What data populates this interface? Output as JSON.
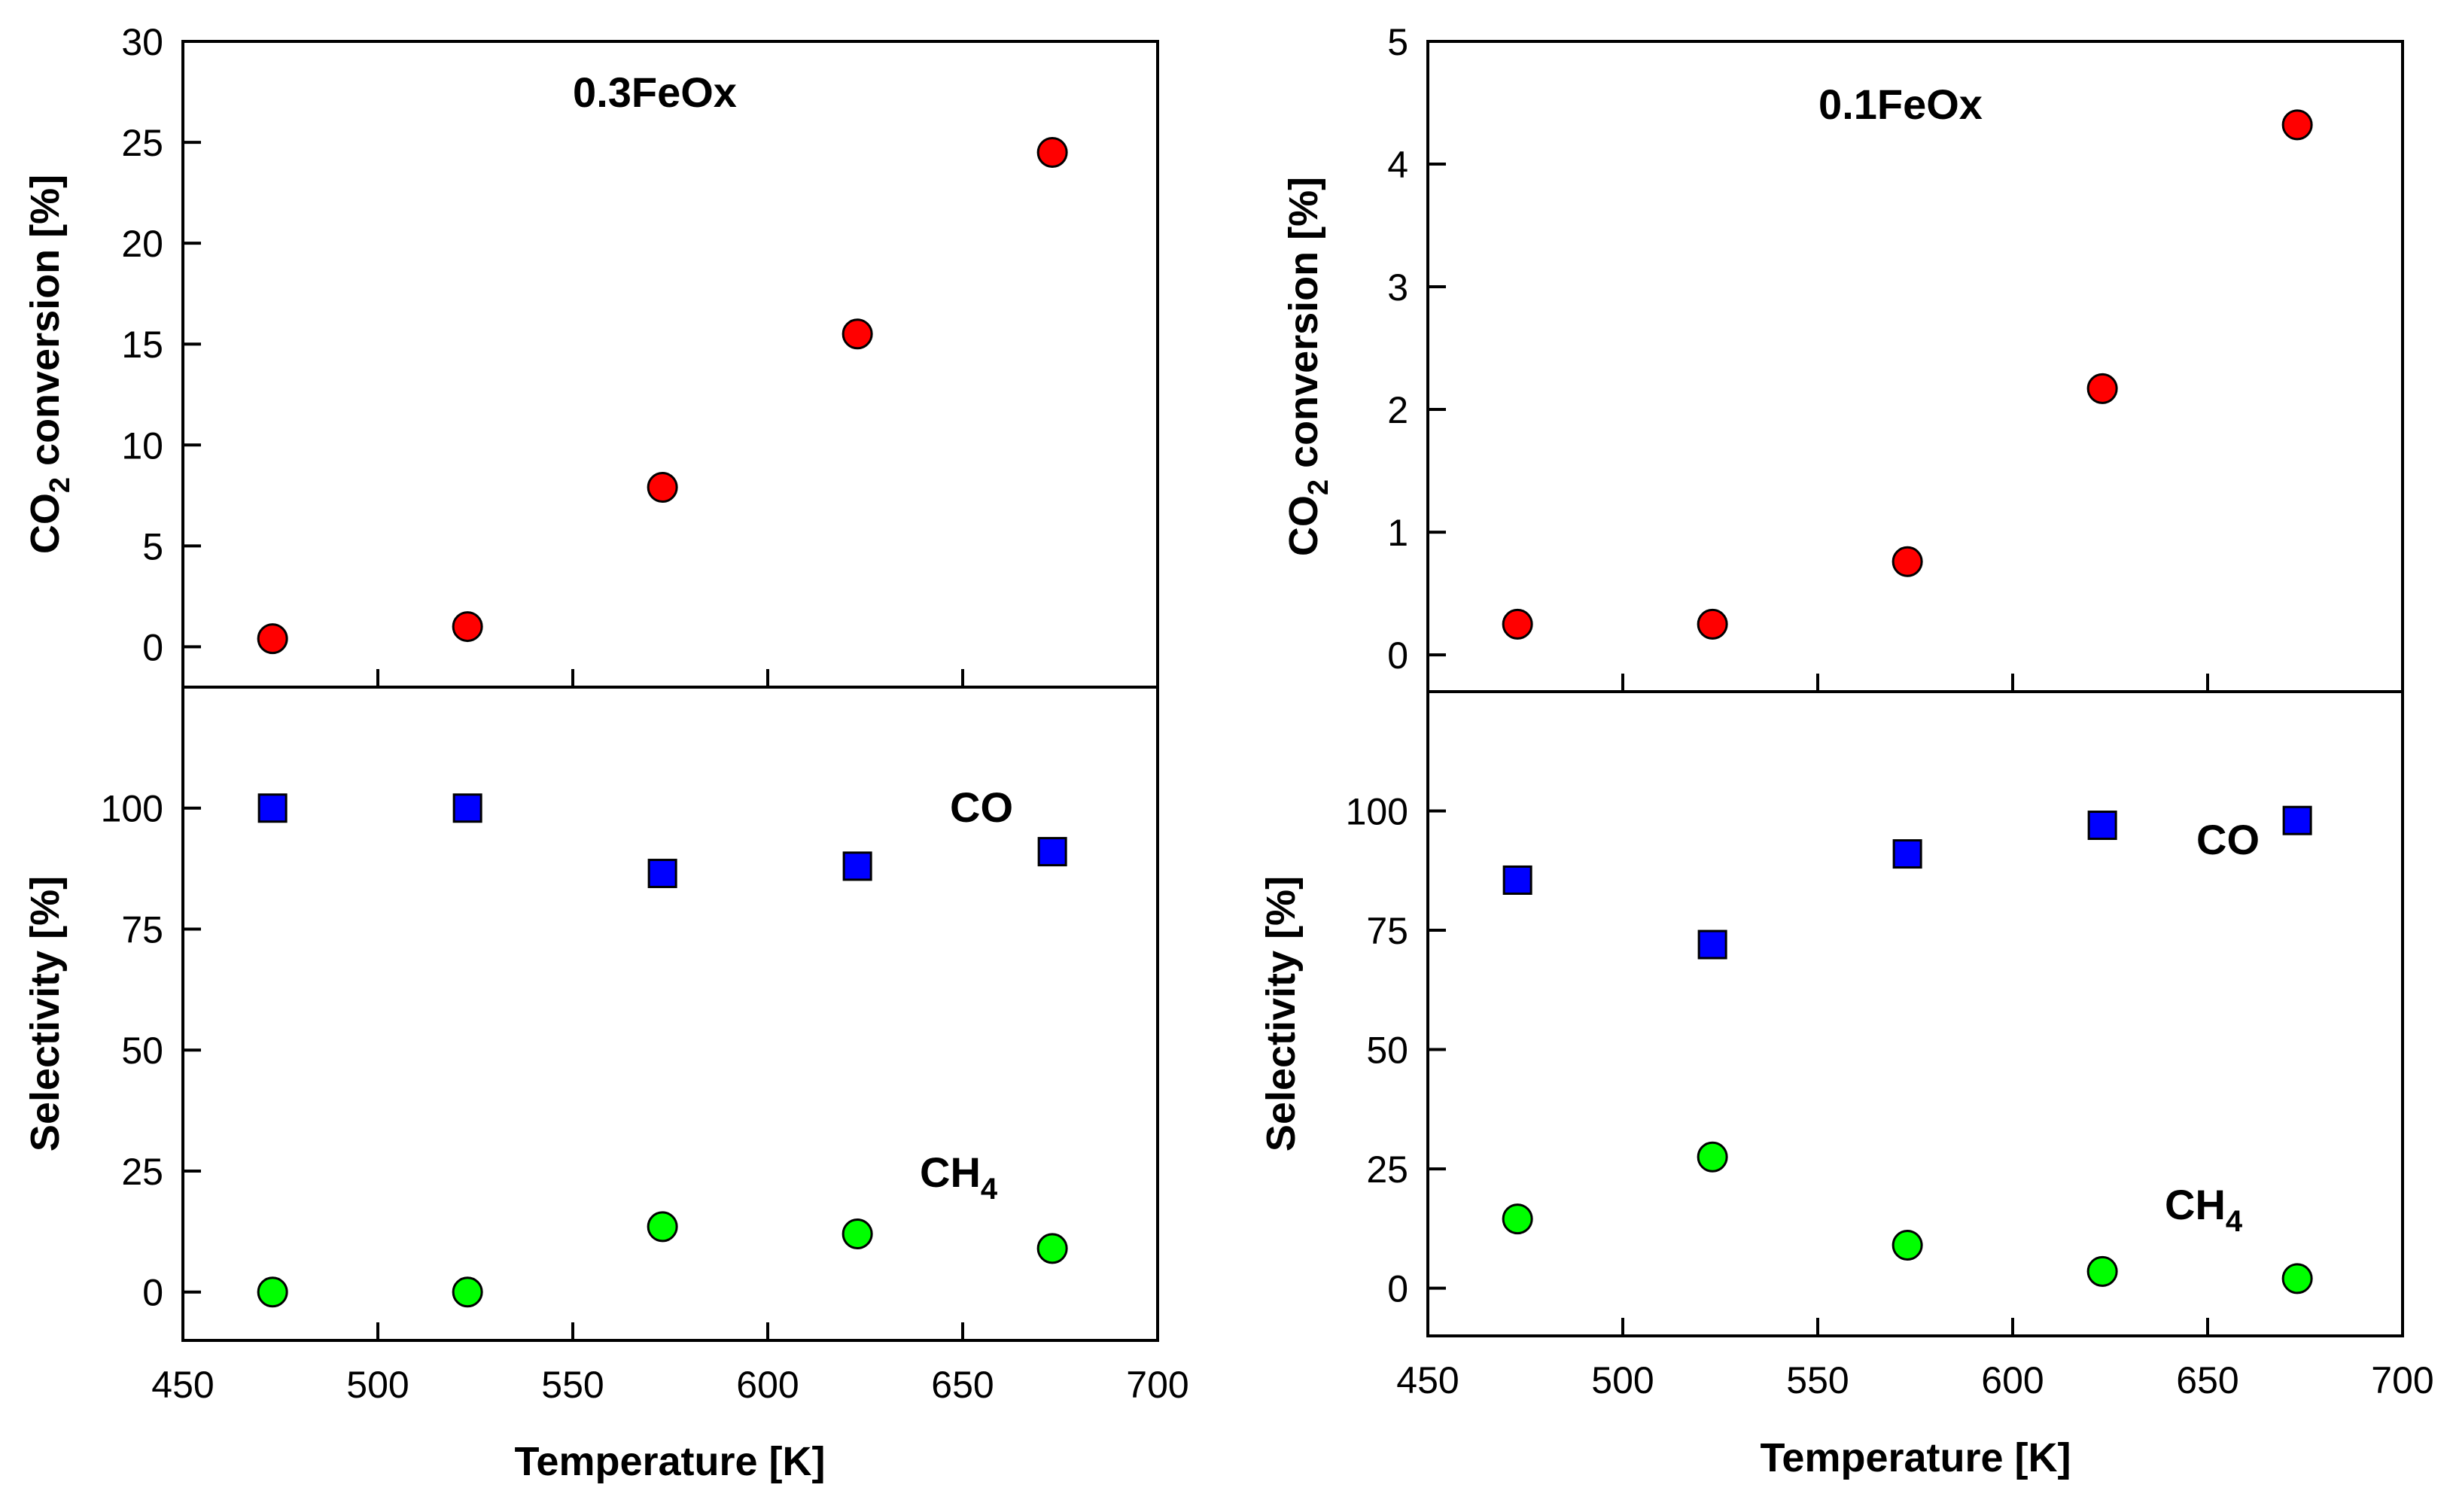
{
  "chart_data": [
    {
      "id": "left",
      "type": "scatter",
      "xlabel": "Temperature [K]",
      "xlim": [
        450,
        700
      ],
      "xticks": [
        450,
        500,
        550,
        600,
        650,
        700
      ],
      "top": {
        "annotation": "0.3FeOx",
        "ylabel_main": "CO",
        "ylabel_sub": "2",
        "ylabel_rest": " conversion [%]",
        "ylim": [
          -2,
          30
        ],
        "yticks": [
          0,
          5,
          10,
          15,
          20,
          25,
          30
        ],
        "series": [
          {
            "name": "CO2 conversion",
            "marker": "circle",
            "color": "#ff0000",
            "x": [
              473,
              523,
              573,
              623,
              673
            ],
            "y": [
              0.4,
              1.0,
              7.9,
              15.5,
              24.5
            ]
          }
        ]
      },
      "bottom": {
        "ylabel": "Selectivity [%]",
        "ylim": [
          -10,
          125
        ],
        "yticks": [
          0,
          25,
          50,
          75,
          100
        ],
        "series": [
          {
            "name": "CO",
            "marker": "square",
            "color": "#0000ff",
            "x": [
              473,
              523,
              573,
              623,
              673
            ],
            "y": [
              100,
              100,
              86.5,
              88,
              91
            ]
          },
          {
            "name": "CH4",
            "marker": "circle",
            "color": "#00ff00",
            "x": [
              473,
              523,
              573,
              623,
              673
            ],
            "y": [
              0,
              0,
              13.5,
              12,
              9
            ]
          }
        ],
        "labels": [
          {
            "series": "CO",
            "main": "CO",
            "sub": ""
          },
          {
            "series": "CH4",
            "main": "CH",
            "sub": "4"
          }
        ]
      }
    },
    {
      "id": "right",
      "type": "scatter",
      "xlabel": "Temperature [K]",
      "xlim": [
        450,
        700
      ],
      "xticks": [
        450,
        500,
        550,
        600,
        650,
        700
      ],
      "top": {
        "annotation": "0.1FeOx",
        "ylabel_main": "CO",
        "ylabel_sub": "2",
        "ylabel_rest": " conversion [%]",
        "ylim": [
          -0.3,
          5
        ],
        "yticks": [
          0,
          1,
          2,
          3,
          4,
          5
        ],
        "series": [
          {
            "name": "CO2 conversion",
            "marker": "circle",
            "color": "#ff0000",
            "x": [
              473,
              523,
              573,
              623,
              673
            ],
            "y": [
              0.25,
              0.25,
              0.76,
              2.17,
              4.32
            ]
          }
        ]
      },
      "bottom": {
        "ylabel": "Selectivity [%]",
        "ylim": [
          -10,
          125
        ],
        "yticks": [
          0,
          25,
          50,
          75,
          100
        ],
        "series": [
          {
            "name": "CO",
            "marker": "square",
            "color": "#0000ff",
            "x": [
              473,
              523,
              573,
              623,
              673
            ],
            "y": [
              85.5,
              72,
              91,
              97,
              98
            ]
          },
          {
            "name": "CH4",
            "marker": "circle",
            "color": "#00ff00",
            "x": [
              473,
              523,
              573,
              623,
              673
            ],
            "y": [
              14.5,
              27.5,
              9,
              3.5,
              2
            ]
          }
        ],
        "labels": [
          {
            "series": "CO",
            "main": "CO",
            "sub": ""
          },
          {
            "series": "CH4",
            "main": "CH",
            "sub": "4"
          }
        ]
      }
    }
  ]
}
